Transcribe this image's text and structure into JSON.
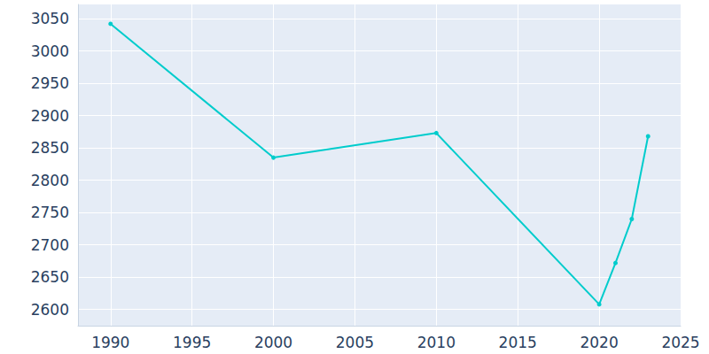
{
  "chart_data": {
    "type": "line",
    "x": [
      1990,
      2000,
      2010,
      2020,
      2021,
      2022,
      2023
    ],
    "values": [
      3042,
      2835,
      2873,
      2608,
      2672,
      2740,
      2868
    ],
    "color": "#00cccc",
    "marker": "circle",
    "xlim": [
      1988,
      2025
    ],
    "xticks": [
      1990,
      1995,
      2000,
      2005,
      2010,
      2015,
      2020,
      2025
    ],
    "ylim": [
      2575,
      3072
    ],
    "yticks": [
      2600,
      2650,
      2700,
      2750,
      2800,
      2850,
      2900,
      2950,
      3000,
      3050
    ],
    "grid": true
  }
}
